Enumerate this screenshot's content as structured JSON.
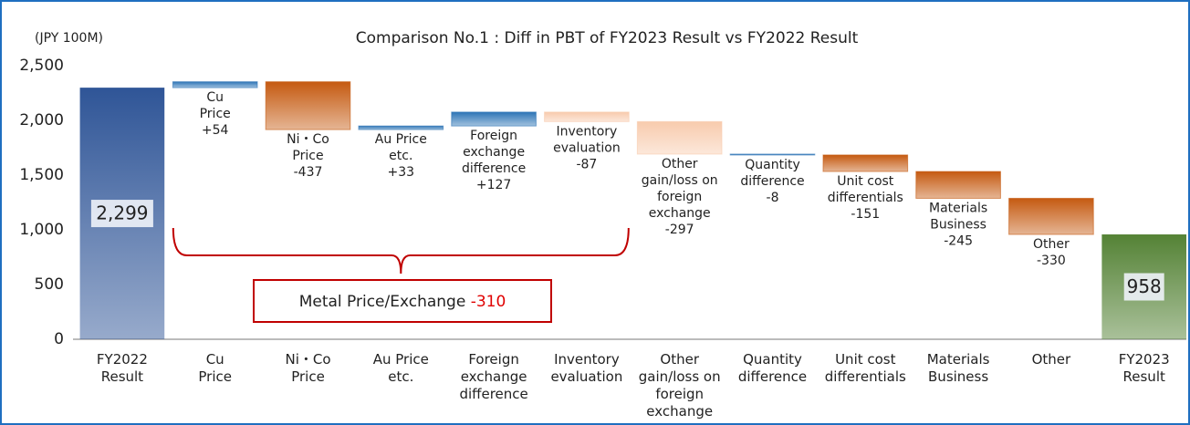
{
  "chart_data": {
    "type": "waterfall",
    "title": "Comparison No.1 : Diff in PBT of FY2023 Result vs FY2022 Result",
    "unit_label": "(JPY 100M)",
    "categories": [
      [
        "FY2022",
        "Result"
      ],
      [
        "Cu",
        "Price"
      ],
      [
        "Ni・Co",
        "Price"
      ],
      [
        "Au Price",
        "etc."
      ],
      [
        "Foreign",
        "exchange",
        "difference"
      ],
      [
        "Inventory",
        "evaluation"
      ],
      [
        "Other",
        "gain/loss on",
        "foreign",
        "exchange"
      ],
      [
        "Quantity",
        "difference"
      ],
      [
        "Unit cost",
        "differentials"
      ],
      [
        "Materials",
        "Business"
      ],
      [
        "Other"
      ],
      [
        "FY2023",
        "Result"
      ]
    ],
    "measure": [
      "absolute",
      "relative",
      "relative",
      "relative",
      "relative",
      "relative",
      "relative",
      "relative",
      "relative",
      "relative",
      "relative",
      "total"
    ],
    "values": [
      2299,
      54,
      -437,
      33,
      127,
      -87,
      -297,
      -8,
      -151,
      -245,
      -330,
      958
    ],
    "value_labels": [
      "2,299",
      "+54",
      "-437",
      "+33",
      "+127",
      "-87",
      "-297",
      "-8",
      "-151",
      "-245",
      "-330",
      "958"
    ],
    "colors": [
      "#2f5597",
      "#2e75b6",
      "#c55a11",
      "#2e75b6",
      "#2e75b6",
      "#f8cbad",
      "#f8cbad",
      "#2e75b6",
      "#c55a11",
      "#c55a11",
      "#c55a11",
      "#548235"
    ],
    "ylim": [
      0,
      2500
    ],
    "yticks": [
      0,
      500,
      {
        "value": 1000,
        "label": "1,000"
      },
      {
        "value": 1500,
        "label": "1,500"
      },
      {
        "value": 2000,
        "label": "2,000"
      },
      {
        "value": 2500,
        "label": "2,500"
      }
    ],
    "grid": false,
    "bracket_label": "Metal Price/Exchange",
    "bracket_value": -310
  }
}
